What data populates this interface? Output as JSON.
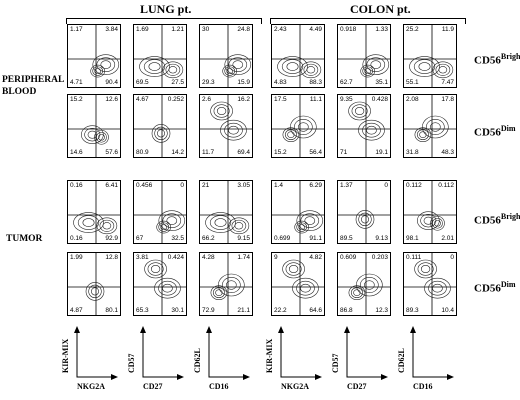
{
  "headers": {
    "lung": "LUNG pt.",
    "colon": "COLON pt."
  },
  "row_groups": {
    "peripheral_blood": [
      "PERIPHERAL",
      "BLOOD"
    ],
    "tumor": "TUMOR"
  },
  "subsets": {
    "bright": {
      "base": "CD56",
      "sup": "Bright"
    },
    "dim": {
      "base": "CD56",
      "sup": "Dim"
    }
  },
  "axis_labels": [
    {
      "y": "KIR-MIX",
      "x": "NKG2A"
    },
    {
      "y": "CD57",
      "x": "CD27"
    },
    {
      "y": "CD62L",
      "x": "CD16"
    },
    {
      "y": "KIR-MIX",
      "x": "NKG2A"
    },
    {
      "y": "CD57",
      "x": "CD27"
    },
    {
      "y": "CD62L",
      "x": "CD16"
    }
  ],
  "panels": [
    [
      {
        "tl": "1.17",
        "tr": "3.84",
        "bl": "4.71",
        "br": "90.4"
      },
      {
        "tl": "1.69",
        "tr": "1.21",
        "bl": "69.5",
        "br": "27.5"
      },
      {
        "tl": "30",
        "tr": "24.8",
        "bl": "29.3",
        "br": "15.9"
      },
      {
        "tl": "2.43",
        "tr": "4.49",
        "bl": "4.83",
        "br": "88.3"
      },
      {
        "tl": "0.918",
        "tr": "1.33",
        "bl": "62.7",
        "br": "35.1"
      },
      {
        "tl": "25.2",
        "tr": "11.9",
        "bl": "55.1",
        "br": "7.47"
      }
    ],
    [
      {
        "tl": "15.2",
        "tr": "12.6",
        "bl": "14.6",
        "br": "57.6"
      },
      {
        "tl": "4.67",
        "tr": "0.252",
        "bl": "80.9",
        "br": "14.2"
      },
      {
        "tl": "2.6",
        "tr": "16.2",
        "bl": "11.7",
        "br": "69.4"
      },
      {
        "tl": "17.5",
        "tr": "11.1",
        "bl": "15.2",
        "br": "56.4"
      },
      {
        "tl": "9.35",
        "tr": "0.428",
        "bl": "71",
        "br": "19.1"
      },
      {
        "tl": "2.08",
        "tr": "17.8",
        "bl": "31.8",
        "br": "48.3"
      }
    ],
    [
      {
        "tl": "0.16",
        "tr": "6.41",
        "bl": "0.16",
        "br": "92.9"
      },
      {
        "tl": "0.456",
        "tr": "0",
        "bl": "67",
        "br": "32.5"
      },
      {
        "tl": "21",
        "tr": "3.05",
        "bl": "66.2",
        "br": "9.15"
      },
      {
        "tl": "1.4",
        "tr": "6.29",
        "bl": "0.699",
        "br": "91.1"
      },
      {
        "tl": "1.37",
        "tr": "0",
        "bl": "89.5",
        "br": "9.13"
      },
      {
        "tl": "0.112",
        "tr": "0.112",
        "bl": "98.1",
        "br": "2.01"
      }
    ],
    [
      {
        "tl": "1.99",
        "tr": "12.8",
        "bl": "4.87",
        "br": "80.1"
      },
      {
        "tl": "3.81",
        "tr": "0.424",
        "bl": "65.3",
        "br": "30.1"
      },
      {
        "tl": "4.28",
        "tr": "1.74",
        "bl": "72.9",
        "br": "21.1"
      },
      {
        "tl": "9",
        "tr": "4.82",
        "bl": "22.2",
        "br": "64.6"
      },
      {
        "tl": "0.609",
        "tr": "0.203",
        "bl": "86.8",
        "br": "12.3"
      },
      {
        "tl": "0.111",
        "tr": "0",
        "bl": "89.3",
        "br": "10.4"
      }
    ]
  ]
}
